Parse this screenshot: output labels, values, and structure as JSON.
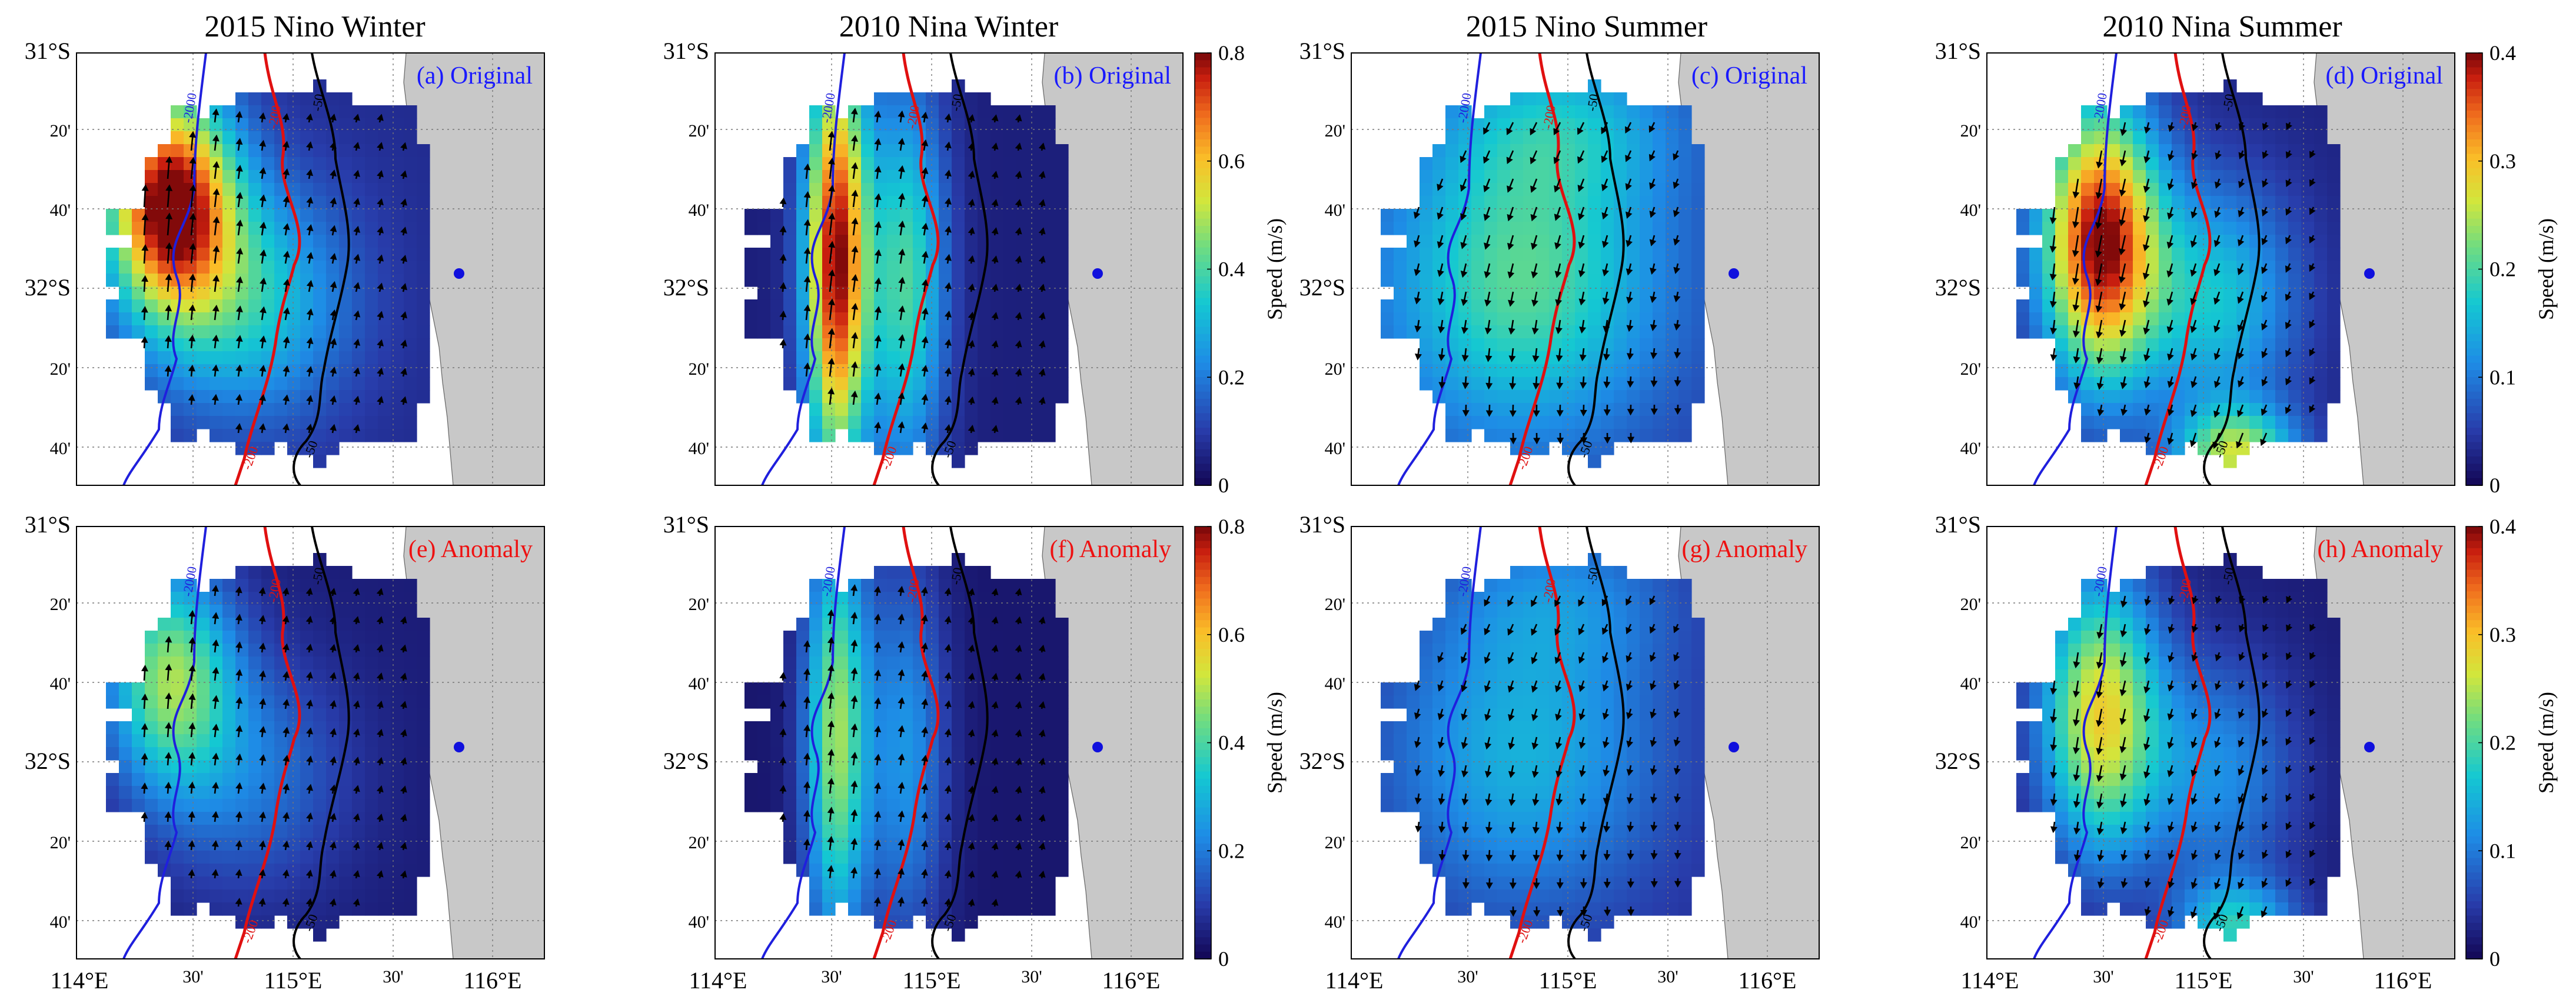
{
  "figure": {
    "columns": [
      {
        "title": "2015 Nino Winter"
      },
      {
        "title": "2010 Nina Winter"
      },
      {
        "title": "2015 Nino Summer"
      },
      {
        "title": "2010 Nina Summer"
      }
    ],
    "panels": [
      {
        "label": "(a)  Original",
        "label_color": "#1a1aff",
        "scale": "winter",
        "pattern": "nino_winter",
        "intensity": 1.0
      },
      {
        "label": "(b)  Original",
        "label_color": "#1a1aff",
        "scale": "winter",
        "pattern": "nina_winter",
        "intensity": 1.0
      },
      {
        "label": "(c)  Original",
        "label_color": "#1a1aff",
        "scale": "summer",
        "pattern": "nino_summer",
        "intensity": 1.0
      },
      {
        "label": "(d)  Original",
        "label_color": "#1a1aff",
        "scale": "summer",
        "pattern": "nina_summer",
        "intensity": 1.0
      },
      {
        "label": "(e)  Anomaly",
        "label_color": "#ee1111",
        "scale": "winter",
        "pattern": "nino_winter",
        "intensity": 0.55
      },
      {
        "label": "(f)  Anomaly",
        "label_color": "#ee1111",
        "scale": "winter",
        "pattern": "nina_winter",
        "intensity": 0.6
      },
      {
        "label": "(g)  Anomaly",
        "label_color": "#ee1111",
        "scale": "summer",
        "pattern": "nino_summer",
        "intensity": 0.7
      },
      {
        "label": "(h)  Anomaly",
        "label_color": "#ee1111",
        "scale": "summer",
        "pattern": "nina_summer",
        "intensity": 0.7
      }
    ],
    "lat_ticks": [
      "31°S",
      "20'",
      "40'",
      "32°S",
      "20'",
      "40'"
    ],
    "lon_ticks": [
      "114°E",
      "30'",
      "115°E",
      "30'",
      "116°E"
    ],
    "contour_labels": {
      "deep": "-2000",
      "mid": "-200",
      "shallow": "-50"
    },
    "contour_colors": {
      "deep": "#1f1fdd",
      "mid": "#e01010",
      "shallow": "#000000"
    },
    "colorbars": {
      "winter": {
        "label": "Speed (m/s)",
        "ticks": [
          "0",
          "0.2",
          "0.4",
          "0.6",
          "0.8"
        ],
        "min": 0,
        "max": 0.8
      },
      "summer": {
        "label": "Speed (m/s)",
        "ticks": [
          "0",
          "0.1",
          "0.2",
          "0.3",
          "0.4"
        ],
        "min": 0,
        "max": 0.4
      }
    },
    "land_color": "#c8c8c8",
    "marker_color": "#1010dd"
  }
}
